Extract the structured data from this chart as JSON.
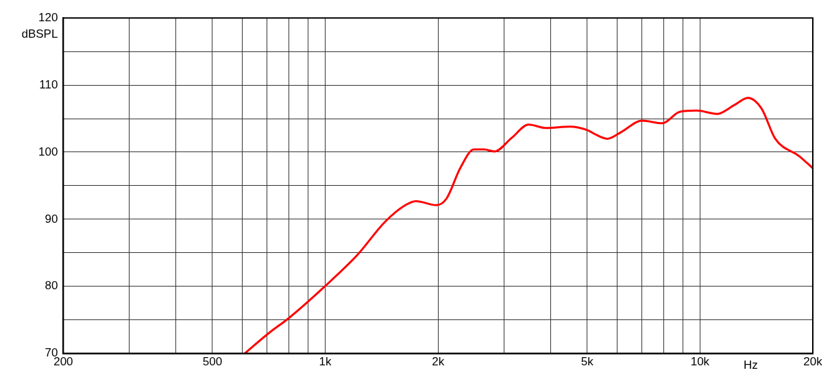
{
  "chart_data": {
    "type": "line",
    "xlabel": "Hz",
    "ylabel": "dBSPL",
    "log": "x",
    "grid": true,
    "legend": false,
    "marker": "none",
    "line_style": "solid",
    "xlim": [
      200,
      20000
    ],
    "xticks": [
      200,
      {
        "value": 300,
        "label": null
      },
      {
        "value": 400,
        "label": null
      },
      500,
      {
        "value": 600,
        "label": null
      },
      {
        "value": 700,
        "label": null
      },
      {
        "value": 800,
        "label": null
      },
      {
        "value": 900,
        "label": null
      },
      {
        "value": 1000,
        "label": "1k"
      },
      {
        "value": 2000,
        "label": "2k"
      },
      {
        "value": 3000,
        "label": null
      },
      {
        "value": 4000,
        "label": null
      },
      {
        "value": 5000,
        "label": "5k"
      },
      {
        "value": 6000,
        "label": null
      },
      {
        "value": 7000,
        "label": null
      },
      {
        "value": 8000,
        "label": null
      },
      {
        "value": 9000,
        "label": null
      },
      {
        "value": 10000,
        "label": "10k"
      },
      {
        "value": 20000,
        "label": "20k"
      }
    ],
    "ylim": [
      70,
      120
    ],
    "yticks": [
      70,
      {
        "value": 75,
        "label": null
      },
      80,
      {
        "value": 85,
        "label": null
      },
      90,
      {
        "value": 95,
        "label": null
      },
      100,
      {
        "value": 105,
        "label": null
      },
      110,
      {
        "value": 115,
        "label": null
      },
      120
    ],
    "series": [
      {
        "color": "#ff0000",
        "x": [
          610,
          706,
          801,
          989,
          1219,
          1443,
          1636,
          1745,
          1979,
          2108,
          2291,
          2493,
          2656,
          2829,
          3141,
          3489,
          3878,
          4496,
          4993,
          5321,
          5667,
          6167,
          6998,
          7940,
          8819,
          9795,
          11115,
          12338,
          13423,
          14597,
          15876,
          18400,
          20000
        ],
        "values": [
          70,
          73,
          75.3,
          79.8,
          84.7,
          89.6,
          92.1,
          92.7,
          92.1,
          93.1,
          97.6,
          100.4,
          100.4,
          100.1,
          102.1,
          104.1,
          103.6,
          103.8,
          103.3,
          102.5,
          102,
          103,
          104.7,
          104.3,
          106,
          106.2,
          105.7,
          107,
          108.1,
          106.5,
          102,
          99.4,
          97.6
        ]
      }
    ]
  }
}
